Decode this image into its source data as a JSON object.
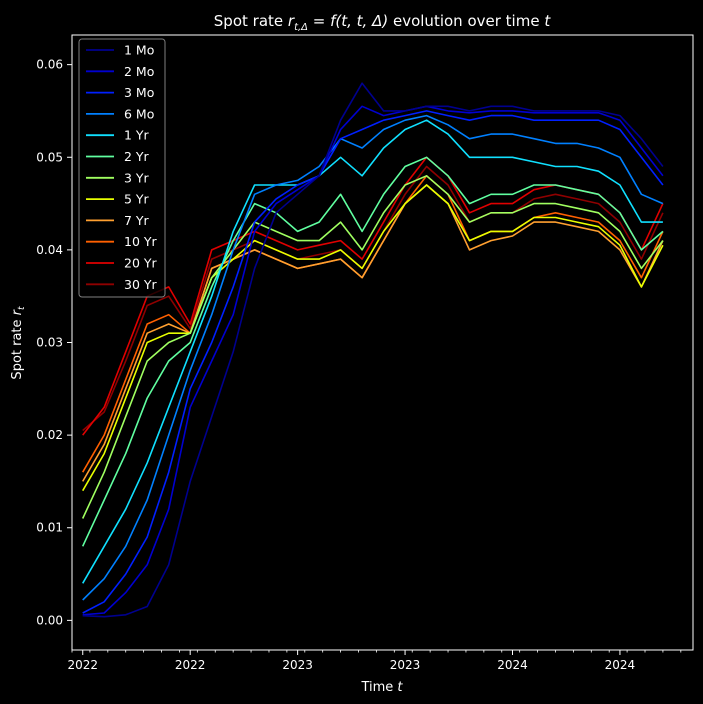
{
  "chart_data": {
    "type": "line",
    "title_parts": {
      "prefix": "Spot rate ",
      "symbol_r": "r",
      "symbol_sub": "t,Δ",
      "eq": " = ",
      "func": "f",
      "args": "(t, t, Δ)",
      "mid": " evolution over time ",
      "time": "t"
    },
    "xlabel_parts": {
      "text": "Time ",
      "var": "t"
    },
    "ylabel_parts": {
      "text": "Spot rate ",
      "var": "r",
      "sub": "t"
    },
    "xlim": [
      2021.95,
      2024.84
    ],
    "ylim": [
      -0.0032,
      0.0632
    ],
    "x_ticks": [
      {
        "value": 2022.0,
        "label": "2022"
      },
      {
        "value": 2022.5,
        "label": "2022"
      },
      {
        "value": 2023.0,
        "label": "2023"
      },
      {
        "value": 2023.5,
        "label": "2023"
      },
      {
        "value": 2024.0,
        "label": "2024"
      },
      {
        "value": 2024.5,
        "label": "2024"
      }
    ],
    "y_ticks": [
      {
        "value": 0.0,
        "label": "0.00"
      },
      {
        "value": 0.01,
        "label": "0.01"
      },
      {
        "value": 0.02,
        "label": "0.02"
      },
      {
        "value": 0.03,
        "label": "0.03"
      },
      {
        "value": 0.04,
        "label": "0.04"
      },
      {
        "value": 0.05,
        "label": "0.05"
      },
      {
        "value": 0.06,
        "label": "0.06"
      }
    ],
    "legend_position": "upper-left",
    "grid": false,
    "x": [
      2022.0,
      2022.1,
      2022.2,
      2022.3,
      2022.4,
      2022.5,
      2022.6,
      2022.7,
      2022.8,
      2022.9,
      2023.0,
      2023.1,
      2023.2,
      2023.3,
      2023.4,
      2023.5,
      2023.6,
      2023.7,
      2023.8,
      2023.9,
      2024.0,
      2024.1,
      2024.2,
      2024.3,
      2024.4,
      2024.5,
      2024.6,
      2024.7
    ],
    "series": [
      {
        "name": "1 Mo",
        "color": "#00008f",
        "values": [
          0.0005,
          0.0004,
          0.0006,
          0.0015,
          0.006,
          0.015,
          0.022,
          0.029,
          0.038,
          0.044,
          0.046,
          0.048,
          0.054,
          0.058,
          0.055,
          0.055,
          0.0555,
          0.0555,
          0.055,
          0.0555,
          0.0555,
          0.055,
          0.055,
          0.055,
          0.055,
          0.0545,
          0.052,
          0.049
        ]
      },
      {
        "name": "2 Mo",
        "color": "#0000d0",
        "values": [
          0.0006,
          0.0008,
          0.003,
          0.006,
          0.012,
          0.023,
          0.028,
          0.033,
          0.042,
          0.045,
          0.0465,
          0.048,
          0.053,
          0.0555,
          0.0545,
          0.055,
          0.0555,
          0.055,
          0.0548,
          0.055,
          0.055,
          0.0548,
          0.0548,
          0.0548,
          0.0548,
          0.054,
          0.051,
          0.048
        ]
      },
      {
        "name": "3 Mo",
        "color": "#0020ff",
        "values": [
          0.0008,
          0.002,
          0.005,
          0.009,
          0.016,
          0.025,
          0.03,
          0.036,
          0.043,
          0.0455,
          0.047,
          0.048,
          0.052,
          0.053,
          0.054,
          0.0545,
          0.055,
          0.0545,
          0.054,
          0.0545,
          0.0545,
          0.054,
          0.054,
          0.054,
          0.054,
          0.053,
          0.05,
          0.047
        ]
      },
      {
        "name": "6 Mo",
        "color": "#0080ff",
        "values": [
          0.0022,
          0.0045,
          0.008,
          0.013,
          0.02,
          0.027,
          0.033,
          0.04,
          0.046,
          0.047,
          0.0475,
          0.049,
          0.052,
          0.051,
          0.053,
          0.054,
          0.0545,
          0.0535,
          0.052,
          0.0525,
          0.0525,
          0.052,
          0.0515,
          0.0515,
          0.051,
          0.05,
          0.046,
          0.045
        ]
      },
      {
        "name": "1 Yr",
        "color": "#10e0ff",
        "values": [
          0.004,
          0.008,
          0.012,
          0.017,
          0.023,
          0.029,
          0.035,
          0.042,
          0.047,
          0.047,
          0.047,
          0.048,
          0.05,
          0.048,
          0.051,
          0.053,
          0.054,
          0.0525,
          0.05,
          0.05,
          0.05,
          0.0495,
          0.049,
          0.049,
          0.0485,
          0.047,
          0.043,
          0.043
        ]
      },
      {
        "name": "2 Yr",
        "color": "#60ffa0",
        "values": [
          0.008,
          0.013,
          0.018,
          0.024,
          0.028,
          0.03,
          0.036,
          0.041,
          0.045,
          0.044,
          0.042,
          0.043,
          0.046,
          0.042,
          0.046,
          0.049,
          0.05,
          0.048,
          0.045,
          0.046,
          0.046,
          0.047,
          0.047,
          0.0465,
          0.046,
          0.044,
          0.04,
          0.042
        ]
      },
      {
        "name": "3 Yr",
        "color": "#a0ff60",
        "values": [
          0.011,
          0.016,
          0.022,
          0.028,
          0.03,
          0.031,
          0.037,
          0.04,
          0.043,
          0.042,
          0.041,
          0.041,
          0.043,
          0.04,
          0.044,
          0.047,
          0.048,
          0.046,
          0.043,
          0.044,
          0.044,
          0.045,
          0.045,
          0.0445,
          0.044,
          0.042,
          0.038,
          0.041
        ]
      },
      {
        "name": "5 Yr",
        "color": "#e8ff00",
        "values": [
          0.014,
          0.018,
          0.024,
          0.03,
          0.031,
          0.031,
          0.037,
          0.039,
          0.041,
          0.04,
          0.039,
          0.039,
          0.04,
          0.038,
          0.042,
          0.045,
          0.047,
          0.045,
          0.041,
          0.042,
          0.042,
          0.0435,
          0.0435,
          0.043,
          0.0425,
          0.0405,
          0.036,
          0.0405
        ]
      },
      {
        "name": "7 Yr",
        "color": "#ffa030",
        "values": [
          0.015,
          0.019,
          0.025,
          0.031,
          0.032,
          0.031,
          0.038,
          0.039,
          0.04,
          0.039,
          0.038,
          0.0385,
          0.039,
          0.037,
          0.041,
          0.045,
          0.047,
          0.045,
          0.04,
          0.041,
          0.0415,
          0.043,
          0.043,
          0.0425,
          0.042,
          0.04,
          0.036,
          0.041
        ]
      },
      {
        "name": "10 Yr",
        "color": "#ff6000",
        "values": [
          0.016,
          0.02,
          0.026,
          0.032,
          0.033,
          0.031,
          0.038,
          0.039,
          0.04,
          0.039,
          0.038,
          0.0385,
          0.039,
          0.037,
          0.041,
          0.045,
          0.048,
          0.046,
          0.041,
          0.042,
          0.042,
          0.0435,
          0.044,
          0.0435,
          0.043,
          0.041,
          0.037,
          0.042
        ]
      },
      {
        "name": "20 Yr",
        "color": "#e00000",
        "values": [
          0.02,
          0.023,
          0.029,
          0.035,
          0.036,
          0.032,
          0.04,
          0.041,
          0.042,
          0.041,
          0.04,
          0.0405,
          0.041,
          0.039,
          0.043,
          0.047,
          0.05,
          0.048,
          0.044,
          0.045,
          0.045,
          0.0465,
          0.047,
          0.0465,
          0.046,
          0.044,
          0.04,
          0.045
        ]
      },
      {
        "name": "30 Yr",
        "color": "#8f0000",
        "values": [
          0.0205,
          0.0225,
          0.028,
          0.034,
          0.035,
          0.0315,
          0.039,
          0.04,
          0.041,
          0.04,
          0.039,
          0.0395,
          0.04,
          0.038,
          0.042,
          0.046,
          0.049,
          0.047,
          0.043,
          0.044,
          0.044,
          0.0455,
          0.046,
          0.0455,
          0.045,
          0.043,
          0.039,
          0.044
        ]
      }
    ]
  }
}
